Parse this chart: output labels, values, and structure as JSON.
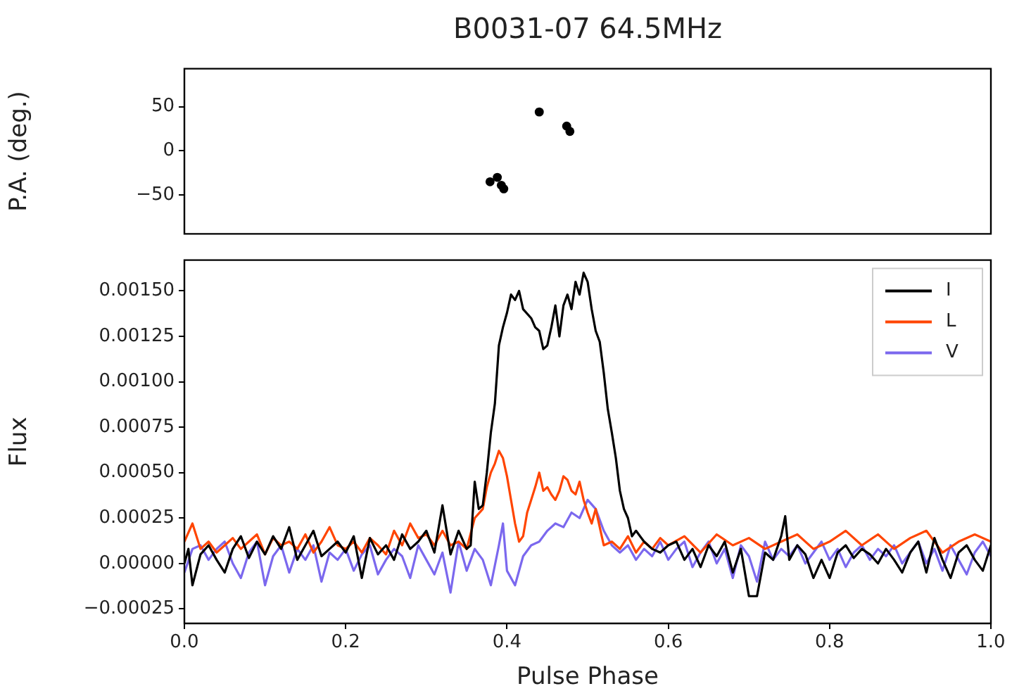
{
  "chart_data": [
    {
      "type": "scatter",
      "title": "B0031-07 64.5MHz",
      "ylabel": "P.A. (deg.)",
      "xlim": [
        0,
        1
      ],
      "ylim": [
        -94,
        93
      ],
      "yticks": [
        {
          "value": -50,
          "label": "−50"
        },
        0,
        50
      ],
      "tick_labels": "y",
      "marker": "circle",
      "series": [
        {
          "color": "#000000",
          "x": [
            0.379,
            0.388,
            0.393,
            0.396,
            0.44,
            0.474,
            0.478
          ],
          "values": [
            -35,
            -30,
            -39,
            -43,
            44,
            28,
            22
          ]
        }
      ]
    },
    {
      "type": "line",
      "xlabel": "Pulse Phase",
      "ylabel": "Flux",
      "xlim": [
        0,
        1
      ],
      "xticks": [
        {
          "value": 0,
          "label": "0.0"
        },
        0.2,
        0.4,
        0.6,
        0.8,
        {
          "value": 1,
          "label": "1.0"
        }
      ],
      "ylim": [
        -0.00033,
        0.00167
      ],
      "yticks": [
        {
          "value": -0.00025,
          "label": "−0.00025"
        },
        {
          "value": 0,
          "label": "0.00000"
        },
        {
          "value": 0.00025,
          "label": "0.00025"
        },
        {
          "value": 0.0005,
          "label": "0.00050"
        },
        {
          "value": 0.00075,
          "label": "0.00075"
        },
        {
          "value": 0.001,
          "label": "0.00100"
        },
        {
          "value": 0.00125,
          "label": "0.00125"
        },
        {
          "value": 0.0015,
          "label": "0.00150"
        }
      ],
      "legend": "top right",
      "marker": "none",
      "line_style": "solid",
      "series": [
        {
          "name": "I",
          "color": "#000000",
          "x": [
            0,
            0.005,
            0.01,
            0.02,
            0.03,
            0.04,
            0.05,
            0.06,
            0.07,
            0.08,
            0.09,
            0.1,
            0.11,
            0.12,
            0.13,
            0.14,
            0.15,
            0.16,
            0.17,
            0.18,
            0.19,
            0.2,
            0.21,
            0.22,
            0.23,
            0.24,
            0.25,
            0.26,
            0.27,
            0.28,
            0.29,
            0.3,
            0.31,
            0.32,
            0.33,
            0.34,
            0.35,
            0.355,
            0.36,
            0.365,
            0.37,
            0.375,
            0.38,
            0.385,
            0.39,
            0.395,
            0.4,
            0.405,
            0.41,
            0.415,
            0.42,
            0.43,
            0.435,
            0.44,
            0.445,
            0.45,
            0.455,
            0.46,
            0.465,
            0.47,
            0.475,
            0.48,
            0.485,
            0.49,
            0.495,
            0.5,
            0.505,
            0.51,
            0.515,
            0.52,
            0.525,
            0.53,
            0.535,
            0.54,
            0.545,
            0.55,
            0.555,
            0.56,
            0.57,
            0.58,
            0.59,
            0.6,
            0.61,
            0.62,
            0.63,
            0.64,
            0.65,
            0.66,
            0.67,
            0.68,
            0.69,
            0.7,
            0.71,
            0.72,
            0.73,
            0.74,
            0.745,
            0.75,
            0.76,
            0.77,
            0.78,
            0.79,
            0.8,
            0.81,
            0.82,
            0.83,
            0.84,
            0.85,
            0.86,
            0.87,
            0.88,
            0.89,
            0.9,
            0.91,
            0.92,
            0.93,
            0.94,
            0.95,
            0.96,
            0.97,
            0.98,
            0.99,
            1
          ],
          "values": [
            0,
            8e-05,
            -0.00012,
            5e-05,
            0.0001,
            2e-05,
            -5e-05,
            8e-05,
            0.00015,
            3e-05,
            0.00012,
            5e-05,
            0.00015,
            8e-05,
            0.0002,
            2e-05,
            0.0001,
            0.00018,
            4e-05,
            8e-05,
            0.00012,
            6e-05,
            0.00015,
            -8e-05,
            0.00014,
            5e-05,
            0.0001,
            2e-05,
            0.00016,
            8e-05,
            0.00012,
            0.00018,
            6e-05,
            0.00032,
            5e-05,
            0.00018,
            8e-05,
            0.0001,
            0.00045,
            0.0003,
            0.00032,
            0.0005,
            0.00072,
            0.00088,
            0.0012,
            0.0013,
            0.00138,
            0.00148,
            0.00145,
            0.0015,
            0.0014,
            0.00135,
            0.0013,
            0.00128,
            0.00118,
            0.0012,
            0.0013,
            0.00142,
            0.00125,
            0.00142,
            0.00148,
            0.0014,
            0.00155,
            0.00148,
            0.0016,
            0.00155,
            0.0014,
            0.00128,
            0.00122,
            0.00105,
            0.00085,
            0.00072,
            0.00058,
            0.0004,
            0.0003,
            0.00025,
            0.00015,
            0.00018,
            0.00012,
            8e-05,
            6e-05,
            0.0001,
            0.00012,
            2e-05,
            8e-05,
            -2e-05,
            0.0001,
            4e-05,
            0.00012,
            -5e-05,
            8e-05,
            -0.00018,
            -0.00018,
            6e-05,
            2e-05,
            0.00015,
            0.00026,
            2e-05,
            0.0001,
            5e-05,
            -8e-05,
            2e-05,
            -8e-05,
            6e-05,
            0.0001,
            3e-05,
            8e-05,
            5e-05,
            0,
            8e-05,
            2e-05,
            -5e-05,
            6e-05,
            0.00012,
            -5e-05,
            0.00014,
            2e-05,
            -8e-05,
            6e-05,
            0.0001,
            2e-05,
            -4e-05,
            0.0001
          ]
        },
        {
          "name": "L",
          "color": "#ff4500",
          "x": [
            0,
            0.01,
            0.02,
            0.03,
            0.04,
            0.05,
            0.06,
            0.07,
            0.08,
            0.09,
            0.1,
            0.11,
            0.12,
            0.13,
            0.14,
            0.15,
            0.16,
            0.17,
            0.18,
            0.19,
            0.2,
            0.21,
            0.22,
            0.23,
            0.24,
            0.25,
            0.26,
            0.27,
            0.28,
            0.29,
            0.3,
            0.31,
            0.32,
            0.33,
            0.34,
            0.35,
            0.36,
            0.37,
            0.375,
            0.38,
            0.385,
            0.39,
            0.395,
            0.4,
            0.405,
            0.41,
            0.415,
            0.42,
            0.425,
            0.43,
            0.435,
            0.44,
            0.445,
            0.45,
            0.455,
            0.46,
            0.465,
            0.47,
            0.475,
            0.48,
            0.485,
            0.49,
            0.495,
            0.5,
            0.505,
            0.51,
            0.515,
            0.52,
            0.53,
            0.54,
            0.55,
            0.56,
            0.57,
            0.58,
            0.59,
            0.6,
            0.62,
            0.64,
            0.66,
            0.68,
            0.7,
            0.72,
            0.74,
            0.76,
            0.78,
            0.8,
            0.82,
            0.84,
            0.86,
            0.88,
            0.9,
            0.92,
            0.94,
            0.96,
            0.98,
            1
          ],
          "values": [
            0.00012,
            0.00022,
            8e-05,
            0.00012,
            6e-05,
            0.0001,
            0.00014,
            8e-05,
            0.00012,
            0.00016,
            5e-05,
            0.00014,
            0.0001,
            0.00012,
            8e-05,
            0.00016,
            6e-05,
            0.00012,
            0.0002,
            0.0001,
            8e-05,
            0.00012,
            6e-05,
            0.00014,
            0.0001,
            5e-05,
            0.00018,
            0.0001,
            0.00022,
            0.00014,
            0.00016,
            0.0001,
            0.00018,
            0.0001,
            0.00012,
            8e-05,
            0.00025,
            0.0003,
            0.00042,
            0.0005,
            0.00055,
            0.00062,
            0.00058,
            0.00048,
            0.00035,
            0.00022,
            0.00012,
            0.00015,
            0.00028,
            0.00035,
            0.00042,
            0.0005,
            0.0004,
            0.00042,
            0.00038,
            0.00035,
            0.0004,
            0.00048,
            0.00046,
            0.0004,
            0.00038,
            0.00045,
            0.00035,
            0.00028,
            0.00022,
            0.0003,
            0.0002,
            0.0001,
            0.00012,
            8e-05,
            0.00015,
            6e-05,
            0.00012,
            8e-05,
            0.00014,
            0.0001,
            0.00015,
            6e-05,
            0.00016,
            0.0001,
            0.00014,
            8e-05,
            0.00012,
            0.00016,
            8e-05,
            0.00012,
            0.00018,
            0.0001,
            0.00016,
            8e-05,
            0.00014,
            0.00018,
            6e-05,
            0.00012,
            0.00016,
            0.00012
          ]
        },
        {
          "name": "V",
          "color": "#7b68ee",
          "x": [
            0,
            0.01,
            0.02,
            0.03,
            0.04,
            0.05,
            0.06,
            0.07,
            0.08,
            0.09,
            0.1,
            0.11,
            0.12,
            0.13,
            0.14,
            0.15,
            0.16,
            0.17,
            0.18,
            0.19,
            0.2,
            0.21,
            0.22,
            0.23,
            0.24,
            0.25,
            0.26,
            0.27,
            0.28,
            0.29,
            0.3,
            0.31,
            0.32,
            0.33,
            0.34,
            0.35,
            0.36,
            0.37,
            0.38,
            0.39,
            0.395,
            0.4,
            0.41,
            0.42,
            0.43,
            0.44,
            0.45,
            0.46,
            0.47,
            0.48,
            0.49,
            0.5,
            0.51,
            0.52,
            0.53,
            0.54,
            0.55,
            0.56,
            0.57,
            0.58,
            0.59,
            0.6,
            0.61,
            0.62,
            0.63,
            0.64,
            0.65,
            0.66,
            0.67,
            0.68,
            0.69,
            0.7,
            0.71,
            0.72,
            0.73,
            0.74,
            0.75,
            0.76,
            0.77,
            0.78,
            0.79,
            0.8,
            0.81,
            0.82,
            0.83,
            0.84,
            0.85,
            0.86,
            0.87,
            0.88,
            0.89,
            0.9,
            0.91,
            0.92,
            0.93,
            0.94,
            0.95,
            0.96,
            0.97,
            0.98,
            0.99,
            1
          ],
          "values": [
            -5e-05,
            8e-05,
            0.0001,
            2e-05,
            8e-05,
            0.00012,
            0,
            -8e-05,
            6e-05,
            0.00012,
            -0.00012,
            4e-05,
            0.0001,
            -5e-05,
            8e-05,
            2e-05,
            0.0001,
            -0.0001,
            6e-05,
            2e-05,
            8e-05,
            -4e-05,
            5e-05,
            0.0001,
            -6e-05,
            2e-05,
            8e-05,
            4e-05,
            -8e-05,
            0.0001,
            2e-05,
            -6e-05,
            6e-05,
            -0.00016,
            0.00012,
            -4e-05,
            8e-05,
            2e-05,
            -0.00012,
            0.0001,
            0.00022,
            -4e-05,
            -0.00012,
            4e-05,
            0.0001,
            0.00012,
            0.00018,
            0.00022,
            0.0002,
            0.00028,
            0.00025,
            0.00035,
            0.0003,
            0.00018,
            0.0001,
            6e-05,
            0.0001,
            2e-05,
            8e-05,
            4e-05,
            0.00012,
            2e-05,
            8e-05,
            0.00012,
            -2e-05,
            6e-05,
            0.00012,
            0,
            8e-05,
            -8e-05,
            0.0001,
            4e-05,
            -0.0001,
            0.00012,
            2e-05,
            8e-05,
            4e-05,
            0.0001,
            0,
            6e-05,
            0.00012,
            2e-05,
            8e-05,
            -2e-05,
            6e-05,
            0.0001,
            2e-05,
            8e-05,
            4e-05,
            0.0001,
            0,
            6e-05,
            0.00012,
            0,
            8e-05,
            -4e-05,
            0.0001,
            2e-05,
            -6e-05,
            6e-05,
            0.00012,
            4e-05
          ]
        }
      ]
    }
  ]
}
